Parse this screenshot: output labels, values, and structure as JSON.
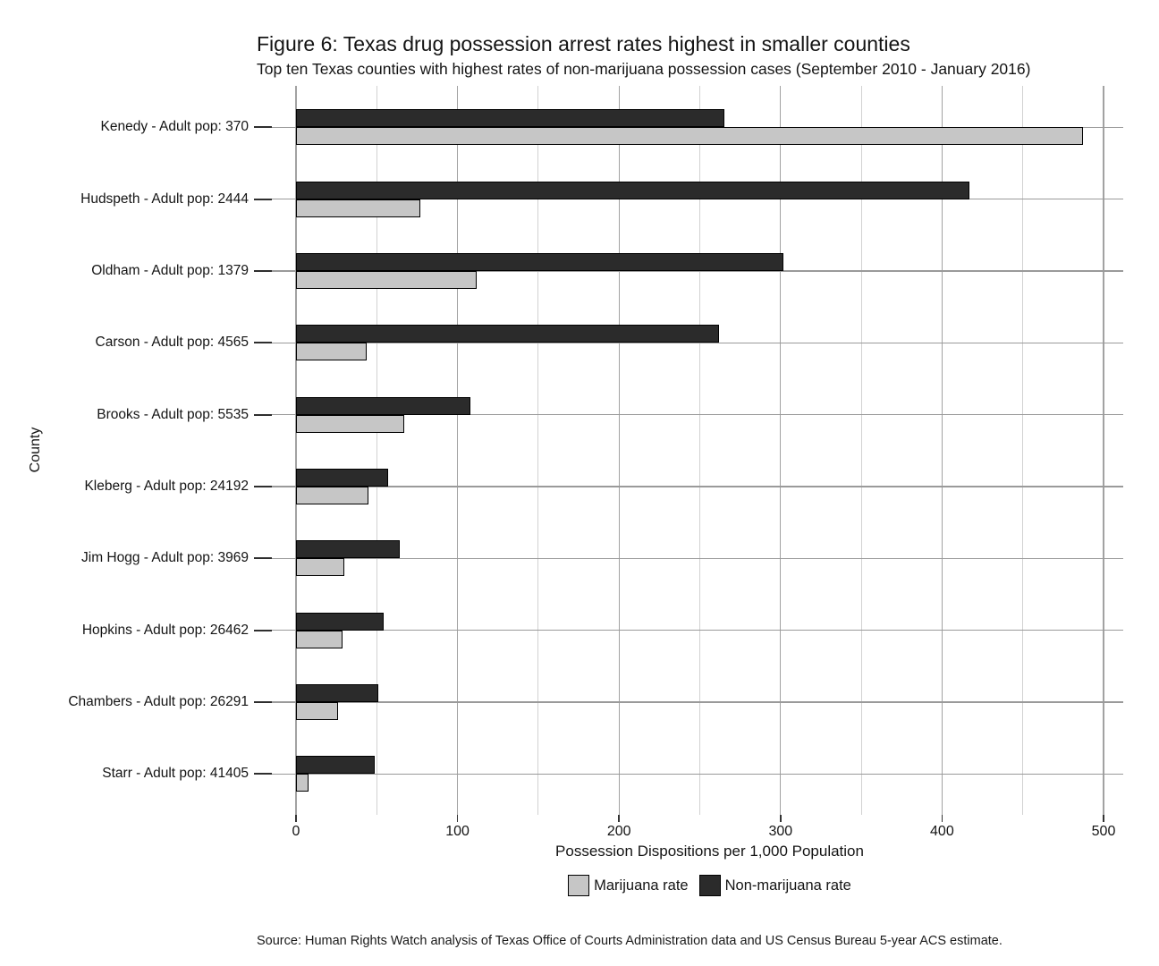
{
  "figure": {
    "source": "Source: Human Rights Watch analysis of Texas Office of Courts Administration data and US Census Bureau 5-year ACS estimate."
  },
  "chart_data": {
    "type": "bar",
    "orientation": "horizontal",
    "title": "Figure 6: Texas drug possession arrest rates highest in smaller counties",
    "subtitle": "Top ten Texas counties with highest rates of non-marijuana possession cases (September 2010 - January 2016)",
    "xlabel": "Possession Dispositions per 1,000 Population",
    "ylabel": "County",
    "xlim": [
      0,
      512
    ],
    "x_ticks": [
      0,
      100,
      200,
      300,
      400,
      500
    ],
    "x_minor_gridlines": [
      50,
      150,
      250,
      350,
      450
    ],
    "grid": true,
    "legend_position": "bottom",
    "categories": [
      "Kenedy - Adult pop: 370",
      "Hudspeth - Adult pop: 2444",
      "Oldham - Adult pop: 1379",
      "Carson - Adult pop: 4565",
      "Brooks - Adult pop: 5535",
      "Kleberg - Adult pop: 24192",
      "Jim Hogg - Adult pop: 3969",
      "Hopkins - Adult pop: 26462",
      "Chambers - Adult pop: 26291",
      "Starr - Adult pop: 41405"
    ],
    "series": [
      {
        "name": "Marijuana rate",
        "color": "#c6c6c6",
        "values": [
          487,
          77,
          112,
          44,
          67,
          45,
          30,
          29,
          26,
          8
        ]
      },
      {
        "name": "Non-marijuana rate",
        "color": "#2b2b2b",
        "values": [
          265,
          417,
          302,
          262,
          108,
          57,
          64,
          54,
          51,
          49
        ]
      }
    ]
  }
}
